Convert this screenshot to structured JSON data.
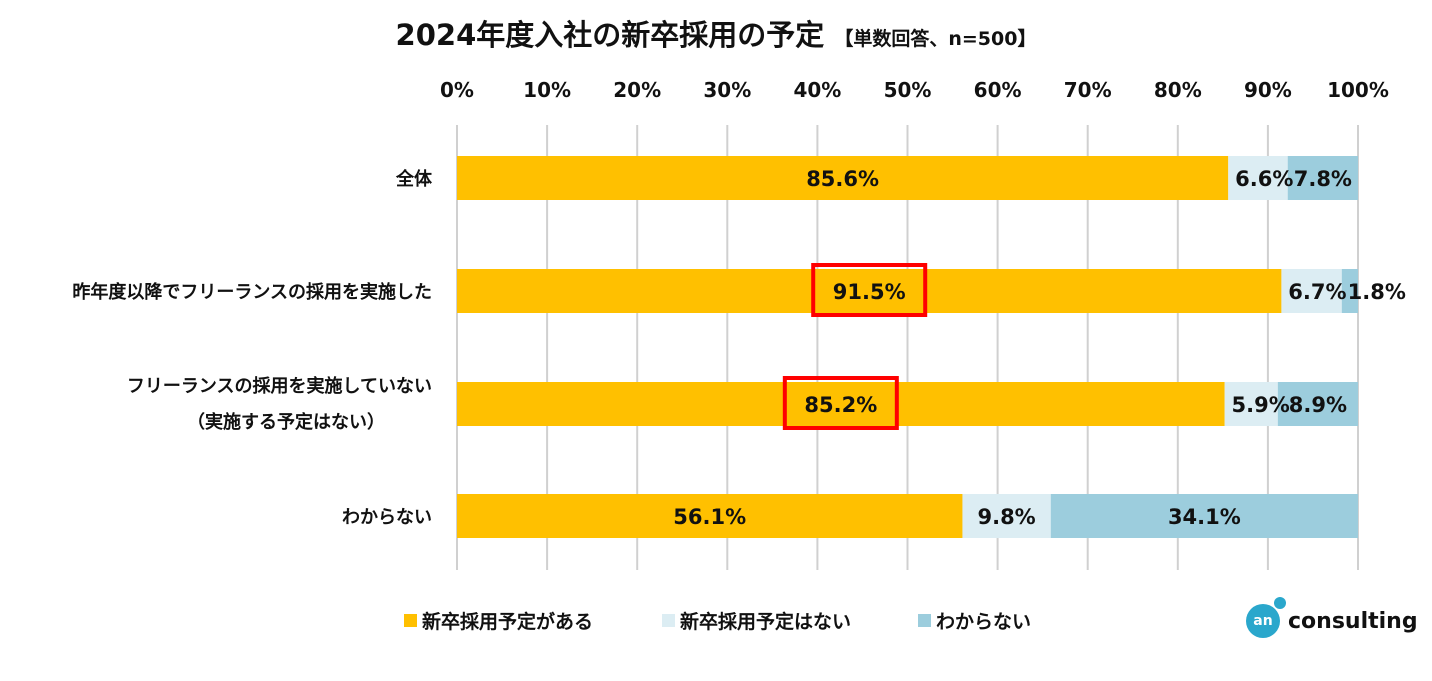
{
  "chart_data": {
    "type": "bar",
    "orientation": "horizontal-stacked-100",
    "title": "2024年度入社の新卒採用の予定",
    "subtitle": "【単数回答、n=500】",
    "categories": [
      "全体",
      "昨年度以降でフリーランスの採用を実施した",
      "フリーランスの採用を実施していない\n（実施する予定はない）",
      "わからない"
    ],
    "series": [
      {
        "name": "新卒採用予定がある",
        "color": "#ffc000",
        "values": [
          85.6,
          91.5,
          85.2,
          56.1
        ]
      },
      {
        "name": "新卒採用予定はない",
        "color": "#dcedf3",
        "values": [
          6.6,
          6.7,
          5.9,
          9.8
        ]
      },
      {
        "name": "わからない",
        "color": "#9ccddd",
        "values": [
          7.8,
          1.8,
          8.9,
          34.1
        ]
      }
    ],
    "xticks": [
      "0%",
      "10%",
      "20%",
      "30%",
      "40%",
      "50%",
      "60%",
      "70%",
      "80%",
      "90%",
      "100%"
    ],
    "xlim": [
      0,
      100
    ],
    "grid": true,
    "legend": "bottom",
    "highlighted": [
      [
        1,
        0
      ],
      [
        2,
        0
      ]
    ],
    "highlight_color": "#ff0000"
  },
  "logo": {
    "mark": "an",
    "text": "consulting"
  }
}
